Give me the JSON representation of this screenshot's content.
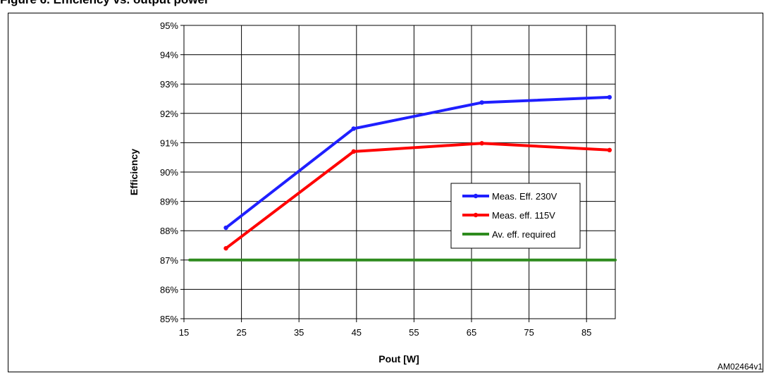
{
  "figure": {
    "title": "Figure 6. Efficiency vs. output power"
  },
  "reference_code": "AM02464v1",
  "colors": {
    "series_230": "#1f1fff",
    "series_115": "#ff0000",
    "required": "#2e8b1e"
  },
  "chart_data": {
    "type": "line",
    "title": "",
    "xlabel": "Pout [W]",
    "ylabel": "Efficiency",
    "xlim": [
      15,
      90
    ],
    "ylim": [
      85,
      95
    ],
    "x_ticks": [
      15,
      25,
      35,
      45,
      55,
      65,
      75,
      85
    ],
    "y_ticks": [
      85,
      86,
      87,
      88,
      89,
      90,
      91,
      92,
      93,
      94,
      95
    ],
    "y_tick_format": "percent",
    "grid": true,
    "legend": "inside-right",
    "series": [
      {
        "name": "Meas. Eff. 230V",
        "color": "#1f1fff",
        "marker": true,
        "x": [
          22.3,
          44.5,
          66.8,
          89.0
        ],
        "y": [
          88.1,
          91.48,
          92.37,
          92.55
        ]
      },
      {
        "name": "Meas. eff. 115V",
        "color": "#ff0000",
        "marker": true,
        "x": [
          22.3,
          44.5,
          66.8,
          89.0
        ],
        "y": [
          87.4,
          90.7,
          90.98,
          90.75
        ]
      },
      {
        "name": "Av. eff. required",
        "color": "#2e8b1e",
        "marker": false,
        "x": [
          16,
          90
        ],
        "y": [
          87.0,
          87.0
        ]
      }
    ]
  }
}
